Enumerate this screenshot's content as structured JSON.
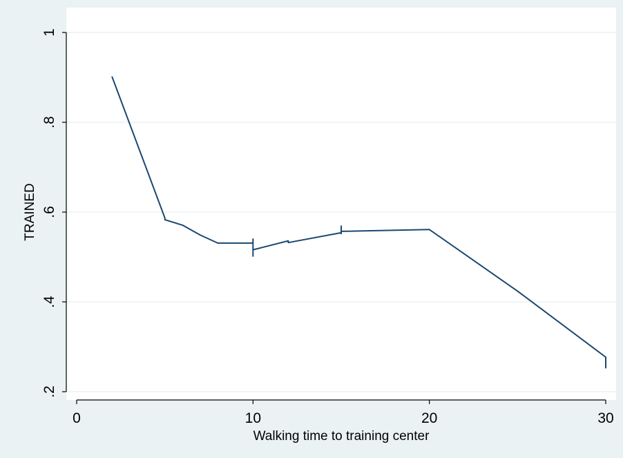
{
  "chart_data": {
    "type": "line",
    "title": "",
    "xlabel": "Walking time to training center",
    "ylabel": "TRAINED",
    "xlim": [
      -1,
      30.5
    ],
    "ylim": [
      0.19,
      1.02
    ],
    "xticks": [
      0,
      10,
      20,
      30
    ],
    "xtick_labels": [
      "0",
      "10",
      "20",
      "30"
    ],
    "yticks": [
      0.2,
      0.4,
      0.6,
      0.8,
      1.0
    ],
    "ytick_labels": [
      ".2",
      ".4",
      ".6",
      ".8",
      "1"
    ],
    "ytick_label_rotation": "vertical",
    "grid": "horizontal",
    "legend": "none",
    "colors": {
      "series": "#1a476f",
      "background": "#eaf2f3",
      "plot": "#ffffff"
    },
    "series": [
      {
        "values": [
          [
            2,
            0.902
          ],
          [
            5,
            0.587
          ],
          [
            5,
            0.583
          ],
          [
            6,
            0.571
          ],
          [
            7,
            0.549
          ],
          [
            8,
            0.531
          ],
          [
            10,
            0.531
          ],
          [
            10,
            0.54
          ],
          [
            10,
            0.502
          ],
          [
            10,
            0.516
          ],
          [
            12,
            0.536
          ],
          [
            12,
            0.532
          ],
          [
            15,
            0.554
          ],
          [
            15,
            0.569
          ],
          [
            15,
            0.552
          ],
          [
            15,
            0.557
          ],
          [
            20,
            0.561
          ],
          [
            25,
            0.424
          ],
          [
            30,
            0.277
          ],
          [
            30,
            0.252
          ]
        ]
      }
    ]
  }
}
